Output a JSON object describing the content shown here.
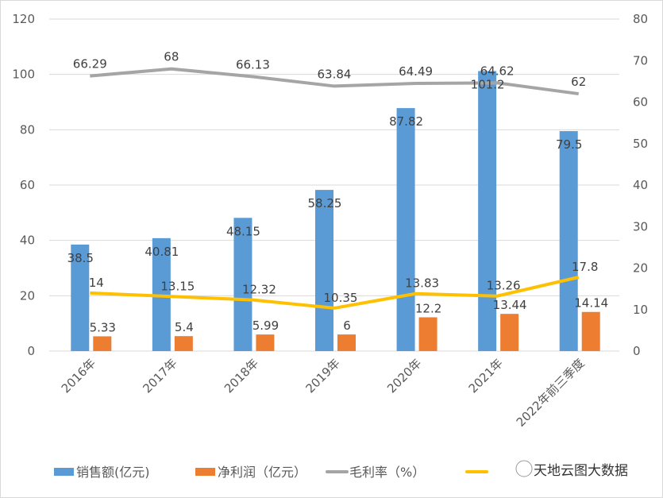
{
  "chart_data": {
    "type": "bar+line",
    "categories": [
      "2016年",
      "2017年",
      "2018年",
      "2019年",
      "2020年",
      "2021年",
      "2022年前三季度"
    ],
    "series": [
      {
        "name": "销售额(亿元)",
        "type": "bar",
        "axis": "left",
        "color": "#5b9bd5",
        "values": [
          38.5,
          40.81,
          48.15,
          58.25,
          87.82,
          101.2,
          79.5
        ]
      },
      {
        "name": "净利润（亿元）",
        "type": "bar",
        "axis": "left",
        "color": "#ed7d31",
        "values": [
          5.33,
          5.4,
          5.99,
          6,
          12.2,
          13.44,
          14.14
        ]
      },
      {
        "name": "毛利率（%）",
        "type": "line",
        "axis": "right",
        "color": "#a5a5a5",
        "values": [
          66.29,
          68,
          66.13,
          63.84,
          64.49,
          64.62,
          62
        ]
      },
      {
        "name": "",
        "type": "line",
        "axis": "right",
        "color": "#ffc000",
        "values": [
          14,
          13.15,
          12.32,
          10.35,
          13.83,
          13.26,
          17.8
        ]
      }
    ],
    "left_axis": {
      "ylim": [
        0,
        120
      ],
      "ticks": [
        "0",
        "20",
        "40",
        "60",
        "80",
        "100",
        "120"
      ]
    },
    "right_axis": {
      "ylim": [
        0,
        80
      ],
      "ticks": [
        "0",
        "10",
        "20",
        "30",
        "40",
        "50",
        "60",
        "70",
        "80"
      ]
    },
    "grid": true,
    "legend": "bottom",
    "watermark": "天地云图大数据"
  }
}
